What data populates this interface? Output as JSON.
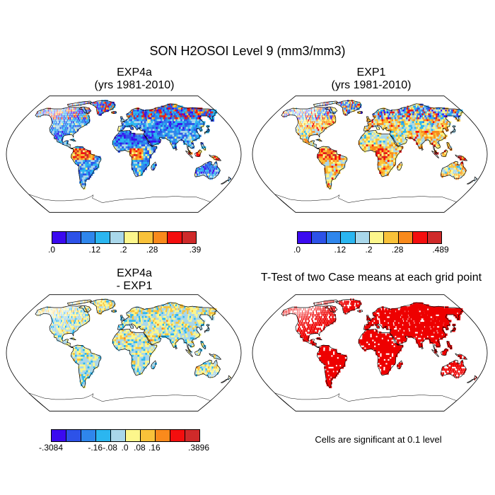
{
  "main_title": "SON H2OSOI Level 9 (mm3/mm3)",
  "panels": [
    {
      "title_line1": "EXP4a",
      "title_line2": "(yrs 1981-2010)",
      "kind": "field",
      "palette": "abs",
      "seed": 11
    },
    {
      "title_line1": "EXP1",
      "title_line2": "(yrs 1981-2010)",
      "kind": "field",
      "palette": "abs",
      "seed": 23
    },
    {
      "title_line1": "EXP4a",
      "title_line2": "- EXP1",
      "kind": "diff",
      "palette": "diff",
      "seed": 37
    },
    {
      "title_line1": "T-Test of two Case means at each grid point",
      "kind": "ttest",
      "seed": 51
    }
  ],
  "colorbars": [
    {
      "labels": [
        ".0",
        ".12",
        ".2",
        ".28",
        ".39"
      ],
      "label_positions": [
        0,
        3,
        5,
        7,
        10
      ],
      "n_colors": 10
    },
    {
      "labels": [
        ".0",
        ".12",
        ".2",
        ".28",
        ".489"
      ],
      "label_positions": [
        0,
        3,
        5,
        7,
        10
      ],
      "n_colors": 10
    },
    {
      "labels": [
        "-.3084",
        "-.16",
        "-.08",
        ".0",
        ".08",
        ".16",
        ".3896"
      ],
      "label_positions": [
        0,
        3,
        4,
        5,
        6,
        7,
        10
      ],
      "n_colors": 10
    }
  ],
  "colors": {
    "abs": [
      "#3b0af0",
      "#2d52e8",
      "#2f86ec",
      "#2bb6f0",
      "#a9d7ea",
      "#fcf68c",
      "#f9c23a",
      "#f98a1c",
      "#f40e0e",
      "#cf2a2a"
    ],
    "diff": [
      "#3b0af0",
      "#2d52e8",
      "#2f86ec",
      "#2bb6f0",
      "#a9d7ea",
      "#fcf68c",
      "#f9c23a",
      "#f98a1c",
      "#f40e0e",
      "#cf2a2a"
    ],
    "ttest": "#ee0000",
    "coast": "#000000"
  },
  "significance_note": "Cells are significant at 0.1 level"
}
